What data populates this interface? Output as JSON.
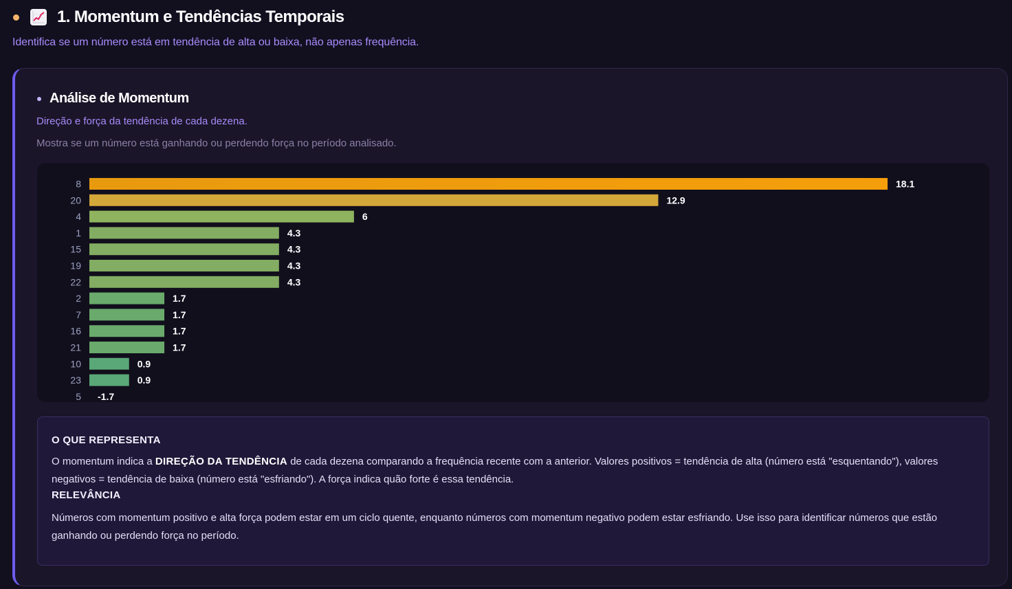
{
  "section": {
    "title": "1. Momentum e Tendências Temporais",
    "subtitle": "Identifica se um número está em tendência de alta ou baixa, não apenas frequência.",
    "icon": "chart-increasing-emoji"
  },
  "card": {
    "title": "Análise de Momentum",
    "subtitle": "Direção e força da tendência de cada dezena.",
    "note": "Mostra se um número está ganhando ou perdendo força no período analisado."
  },
  "chart_data": {
    "type": "bar",
    "orientation": "horizontal",
    "title": "",
    "xlabel": "",
    "ylabel": "",
    "categories": [
      "8",
      "20",
      "4",
      "1",
      "15",
      "19",
      "22",
      "2",
      "7",
      "16",
      "21",
      "10",
      "23",
      "5"
    ],
    "values": [
      18.1,
      12.9,
      6,
      4.3,
      4.3,
      4.3,
      4.3,
      1.7,
      1.7,
      1.7,
      1.7,
      0.9,
      0.9,
      -1.7
    ],
    "value_labels": [
      "18.1",
      "12.9",
      "6",
      "4.3",
      "4.3",
      "4.3",
      "4.3",
      "1.7",
      "1.7",
      "1.7",
      "1.7",
      "0.9",
      "0.9",
      "-1.7"
    ],
    "xlim": [
      0,
      18.1
    ],
    "grid": false,
    "legend": "none",
    "colors": {
      "high": "#f59e0b",
      "mid_high": "#d4a73a",
      "mid": "#8fb35e",
      "low": "#6aaa6c",
      "lowest": "#5aa877"
    }
  },
  "info": {
    "heading1": "O QUE REPRESENTA",
    "p1_before": "O momentum indica a ",
    "p1_bold": "DIREÇÃO DA TENDÊNCIA",
    "p1_after": " de cada dezena comparando a frequência recente com a anterior. Valores positivos = tendência de alta (número está \"esquentando\"), valores negativos = tendência de baixa (número está \"esfriando\"). A força indica quão forte é essa tendência.",
    "heading2": "RELEVÂNCIA",
    "p2": "Números com momentum positivo e alta força podem estar em um ciclo quente, enquanto números com momentum negativo podem estar esfriando. Use isso para identificar números que estão ganhando ou perdendo força no período."
  }
}
